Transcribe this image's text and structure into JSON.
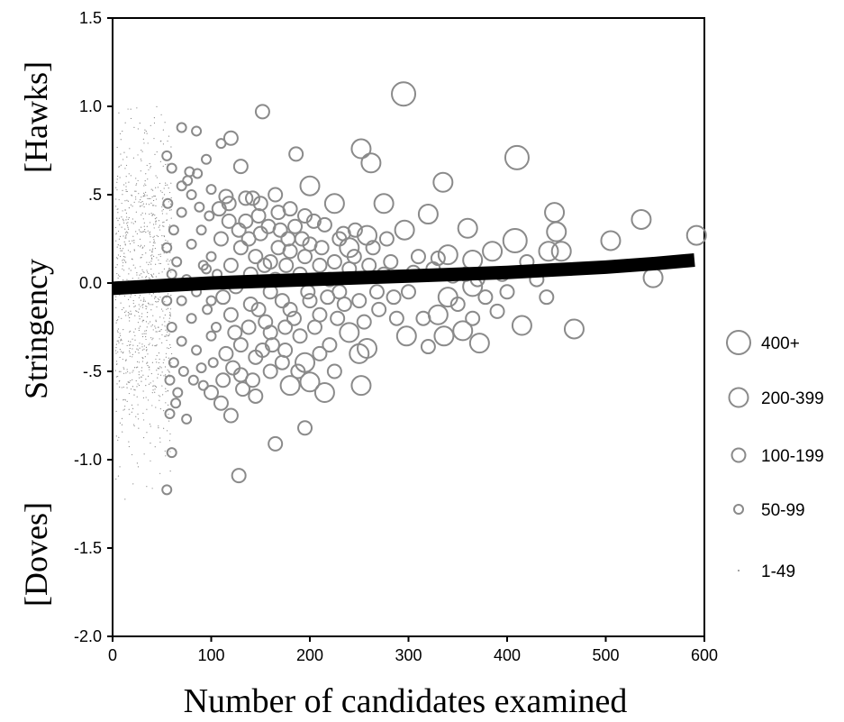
{
  "chart_data": {
    "type": "scatter",
    "title": "",
    "xlabel": "Number of candidates examined",
    "ylabel": "Stringency",
    "ylabel_top": "[Hawks]",
    "ylabel_bottom": "[Doves]",
    "xlim": [
      0,
      600
    ],
    "ylim": [
      -2.0,
      1.5
    ],
    "grid": false,
    "legend_position": "right",
    "x_ticks": [
      {
        "value": 0,
        "label": "0"
      },
      {
        "value": 100,
        "label": "100"
      },
      {
        "value": 200,
        "label": "200"
      },
      {
        "value": 300,
        "label": "300"
      },
      {
        "value": 400,
        "label": "400"
      },
      {
        "value": 500,
        "label": "500"
      },
      {
        "value": 600,
        "label": "600"
      }
    ],
    "y_ticks": [
      {
        "value": 1.5,
        "label": "1.5"
      },
      {
        "value": 1.0,
        "label": "1.0"
      },
      {
        "value": 0.5,
        "label": ".5"
      },
      {
        "value": 0.0,
        "label": "0.0"
      },
      {
        "value": -0.5,
        "label": "-.5"
      },
      {
        "value": -1.0,
        "label": "-1.0"
      },
      {
        "value": -1.5,
        "label": "-1.5"
      },
      {
        "value": -2.0,
        "label": "-2.0"
      }
    ],
    "size_legend": [
      {
        "label": "400+",
        "size_class": 5
      },
      {
        "label": "200-399",
        "size_class": 4
      },
      {
        "label": "100-199",
        "size_class": 3
      },
      {
        "label": "50-99",
        "size_class": 2
      },
      {
        "label": "1-49",
        "size_class": 1
      }
    ],
    "points": [
      [
        295,
        1.07,
        5
      ],
      [
        152,
        0.97,
        3
      ],
      [
        410,
        0.71,
        5
      ],
      [
        252,
        0.76,
        4
      ],
      [
        262,
        0.68,
        4
      ],
      [
        186,
        0.73,
        3
      ],
      [
        120,
        0.82,
        3
      ],
      [
        70,
        0.88,
        2
      ],
      [
        85,
        0.86,
        2
      ],
      [
        110,
        0.79,
        2
      ],
      [
        335,
        0.57,
        4
      ],
      [
        448,
        0.4,
        4
      ],
      [
        450,
        0.29,
        4
      ],
      [
        536,
        0.36,
        4
      ],
      [
        592,
        0.27,
        4
      ],
      [
        408,
        0.24,
        5
      ],
      [
        505,
        0.24,
        4
      ],
      [
        442,
        0.18,
        4
      ],
      [
        385,
        0.18,
        4
      ],
      [
        455,
        0.18,
        4
      ],
      [
        360,
        0.31,
        4
      ],
      [
        320,
        0.39,
        4
      ],
      [
        296,
        0.3,
        4
      ],
      [
        275,
        0.45,
        4
      ],
      [
        225,
        0.45,
        4
      ],
      [
        200,
        0.55,
        4
      ],
      [
        258,
        0.27,
        4
      ],
      [
        240,
        0.2,
        4
      ],
      [
        340,
        0.16,
        4
      ],
      [
        365,
        0.13,
        4
      ],
      [
        330,
        0.14,
        3
      ],
      [
        305,
        0.06,
        3
      ],
      [
        345,
        0.04,
        3
      ],
      [
        370,
        0.02,
        3
      ],
      [
        365,
        -0.02,
        4
      ],
      [
        340,
        -0.08,
        4
      ],
      [
        330,
        -0.18,
        4
      ],
      [
        355,
        -0.27,
        4
      ],
      [
        336,
        -0.3,
        4
      ],
      [
        372,
        -0.34,
        4
      ],
      [
        365,
        -0.2,
        3
      ],
      [
        390,
        -0.16,
        3
      ],
      [
        415,
        -0.24,
        4
      ],
      [
        468,
        -0.26,
        4
      ],
      [
        548,
        0.03,
        4
      ],
      [
        320,
        -0.36,
        3
      ],
      [
        298,
        -0.3,
        4
      ],
      [
        258,
        -0.37,
        4
      ],
      [
        250,
        -0.4,
        4
      ],
      [
        240,
        -0.28,
        4
      ],
      [
        252,
        -0.58,
        4
      ],
      [
        215,
        -0.62,
        4
      ],
      [
        195,
        -0.82,
        3
      ],
      [
        165,
        -0.91,
        3
      ],
      [
        128,
        -1.09,
        3
      ],
      [
        55,
        -1.17,
        2
      ],
      [
        60,
        -0.96,
        2
      ],
      [
        58,
        -0.74,
        2
      ],
      [
        75,
        -0.77,
        2
      ],
      [
        64,
        -0.68,
        2
      ],
      [
        120,
        -0.75,
        3
      ],
      [
        100,
        -0.62,
        3
      ],
      [
        110,
        -0.68,
        3
      ],
      [
        145,
        -0.64,
        3
      ],
      [
        180,
        -0.58,
        4
      ],
      [
        200,
        -0.56,
        4
      ],
      [
        195,
        -0.45,
        4
      ],
      [
        160,
        -0.5,
        3
      ],
      [
        130,
        -0.52,
        3
      ],
      [
        90,
        -0.48,
        2
      ],
      [
        55,
        0.72,
        2
      ],
      [
        60,
        0.65,
        2
      ],
      [
        78,
        0.63,
        2
      ],
      [
        95,
        0.7,
        2
      ],
      [
        130,
        0.66,
        3
      ],
      [
        70,
        0.55,
        2
      ],
      [
        80,
        0.5,
        2
      ],
      [
        100,
        0.53,
        2
      ],
      [
        115,
        0.49,
        3
      ],
      [
        135,
        0.48,
        3
      ],
      [
        150,
        0.45,
        3
      ],
      [
        165,
        0.5,
        3
      ],
      [
        180,
        0.42,
        3
      ],
      [
        195,
        0.38,
        3
      ],
      [
        215,
        0.33,
        3
      ],
      [
        230,
        0.25,
        3
      ],
      [
        245,
        0.15,
        3
      ],
      [
        260,
        0.1,
        3
      ],
      [
        275,
        0.05,
        3
      ],
      [
        285,
        -0.08,
        3
      ],
      [
        270,
        -0.15,
        3
      ],
      [
        255,
        -0.22,
        3
      ],
      [
        235,
        -0.12,
        3
      ],
      [
        220,
        -0.35,
        3
      ],
      [
        205,
        -0.25,
        3
      ],
      [
        190,
        -0.3,
        3
      ],
      [
        175,
        -0.38,
        3
      ],
      [
        160,
        -0.28,
        3
      ],
      [
        145,
        -0.42,
        3
      ],
      [
        130,
        -0.35,
        3
      ],
      [
        115,
        -0.4,
        3
      ],
      [
        100,
        -0.3,
        2
      ],
      [
        85,
        -0.38,
        2
      ],
      [
        70,
        -0.33,
        2
      ],
      [
        60,
        -0.25,
        2
      ],
      [
        55,
        -0.1,
        2
      ],
      [
        60,
        0.05,
        2
      ],
      [
        55,
        0.2,
        2
      ],
      [
        62,
        0.3,
        2
      ],
      [
        70,
        0.4,
        2
      ],
      [
        80,
        0.22,
        2
      ],
      [
        90,
        0.3,
        2
      ],
      [
        100,
        0.15,
        2
      ],
      [
        110,
        0.25,
        3
      ],
      [
        120,
        0.1,
        3
      ],
      [
        130,
        0.2,
        3
      ],
      [
        140,
        0.05,
        3
      ],
      [
        150,
        0.28,
        3
      ],
      [
        160,
        0.12,
        3
      ],
      [
        170,
        0.3,
        3
      ],
      [
        180,
        0.18,
        3
      ],
      [
        190,
        0.05,
        3
      ],
      [
        200,
        0.22,
        3
      ],
      [
        210,
        0.1,
        3
      ],
      [
        220,
        0.02,
        3
      ],
      [
        230,
        -0.05,
        3
      ],
      [
        240,
        0.08,
        3
      ],
      [
        250,
        -0.1,
        3
      ],
      [
        200,
        -0.1,
        3
      ],
      [
        180,
        -0.15,
        3
      ],
      [
        160,
        -0.05,
        3
      ],
      [
        140,
        -0.12,
        3
      ],
      [
        120,
        -0.18,
        3
      ],
      [
        100,
        -0.1,
        2
      ],
      [
        80,
        -0.2,
        2
      ],
      [
        70,
        -0.1,
        2
      ],
      [
        65,
        0.12,
        2
      ],
      [
        75,
        0.02,
        2
      ],
      [
        85,
        -0.05,
        2
      ],
      [
        95,
        0.08,
        2
      ],
      [
        105,
        -0.25,
        2
      ],
      [
        125,
        -0.02,
        3
      ],
      [
        135,
        0.35,
        3
      ],
      [
        145,
        0.15,
        3
      ],
      [
        155,
        -0.22,
        3
      ],
      [
        165,
        0.02,
        3
      ],
      [
        175,
        -0.25,
        3
      ],
      [
        185,
        0.32,
        3
      ],
      [
        195,
        0.15,
        3
      ],
      [
        210,
        -0.18,
        3
      ],
      [
        225,
        0.12,
        3
      ],
      [
        88,
        0.43,
        2
      ],
      [
        98,
        0.38,
        2
      ],
      [
        108,
        0.42,
        3
      ],
      [
        118,
        0.35,
        3
      ],
      [
        128,
        0.3,
        3
      ],
      [
        138,
        0.25,
        3
      ],
      [
        148,
        0.38,
        3
      ],
      [
        158,
        0.32,
        3
      ],
      [
        168,
        0.4,
        3
      ],
      [
        178,
        0.25,
        3
      ],
      [
        62,
        -0.45,
        2
      ],
      [
        72,
        -0.5,
        2
      ],
      [
        82,
        -0.55,
        2
      ],
      [
        92,
        -0.58,
        2
      ],
      [
        102,
        -0.45,
        2
      ],
      [
        112,
        -0.55,
        3
      ],
      [
        122,
        -0.48,
        3
      ],
      [
        132,
        -0.6,
        3
      ],
      [
        142,
        -0.55,
        3
      ],
      [
        152,
        -0.38,
        3
      ],
      [
        172,
        -0.45,
        3
      ],
      [
        188,
        -0.5,
        3
      ],
      [
        210,
        -0.4,
        3
      ],
      [
        225,
        -0.5,
        3
      ],
      [
        56,
        0.45,
        2
      ],
      [
        58,
        -0.55,
        2
      ],
      [
        66,
        -0.62,
        2
      ],
      [
        76,
        0.58,
        2
      ],
      [
        86,
        0.62,
        2
      ],
      [
        92,
        0.1,
        2
      ],
      [
        96,
        -0.15,
        2
      ],
      [
        106,
        0.05,
        2
      ],
      [
        112,
        -0.08,
        3
      ],
      [
        118,
        0.45,
        3
      ],
      [
        124,
        -0.28,
        3
      ],
      [
        138,
        -0.25,
        3
      ],
      [
        142,
        0.48,
        3
      ],
      [
        148,
        -0.15,
        3
      ],
      [
        154,
        0.1,
        3
      ],
      [
        162,
        -0.35,
        3
      ],
      [
        168,
        0.2,
        3
      ],
      [
        172,
        -0.1,
        3
      ],
      [
        176,
        0.1,
        3
      ],
      [
        184,
        -0.2,
        3
      ],
      [
        192,
        0.25,
        3
      ],
      [
        198,
        -0.05,
        3
      ],
      [
        204,
        0.35,
        3
      ],
      [
        212,
        0.2,
        3
      ],
      [
        218,
        -0.08,
        3
      ],
      [
        228,
        -0.2,
        3
      ],
      [
        234,
        0.28,
        3
      ],
      [
        246,
        0.3,
        3
      ],
      [
        264,
        0.2,
        3
      ],
      [
        268,
        -0.05,
        3
      ],
      [
        278,
        0.25,
        3
      ],
      [
        282,
        0.12,
        3
      ],
      [
        288,
        -0.2,
        3
      ],
      [
        300,
        -0.05,
        3
      ],
      [
        310,
        0.15,
        3
      ],
      [
        315,
        -0.2,
        3
      ],
      [
        325,
        0.08,
        3
      ],
      [
        350,
        -0.12,
        3
      ],
      [
        358,
        0.05,
        3
      ],
      [
        378,
        -0.08,
        3
      ],
      [
        395,
        0.05,
        3
      ],
      [
        400,
        -0.05,
        3
      ],
      [
        420,
        0.12,
        3
      ],
      [
        430,
        0.02,
        3
      ],
      [
        440,
        -0.08,
        3
      ]
    ],
    "small_points_description": "dense small markers for x < 60",
    "trend_line": {
      "x": [
        0,
        50,
        100,
        150,
        200,
        250,
        300,
        350,
        400,
        450,
        500,
        550,
        590
      ],
      "y": [
        -0.03,
        -0.015,
        0.0,
        0.01,
        0.02,
        0.03,
        0.04,
        0.05,
        0.06,
        0.075,
        0.09,
        0.11,
        0.13
      ]
    }
  }
}
